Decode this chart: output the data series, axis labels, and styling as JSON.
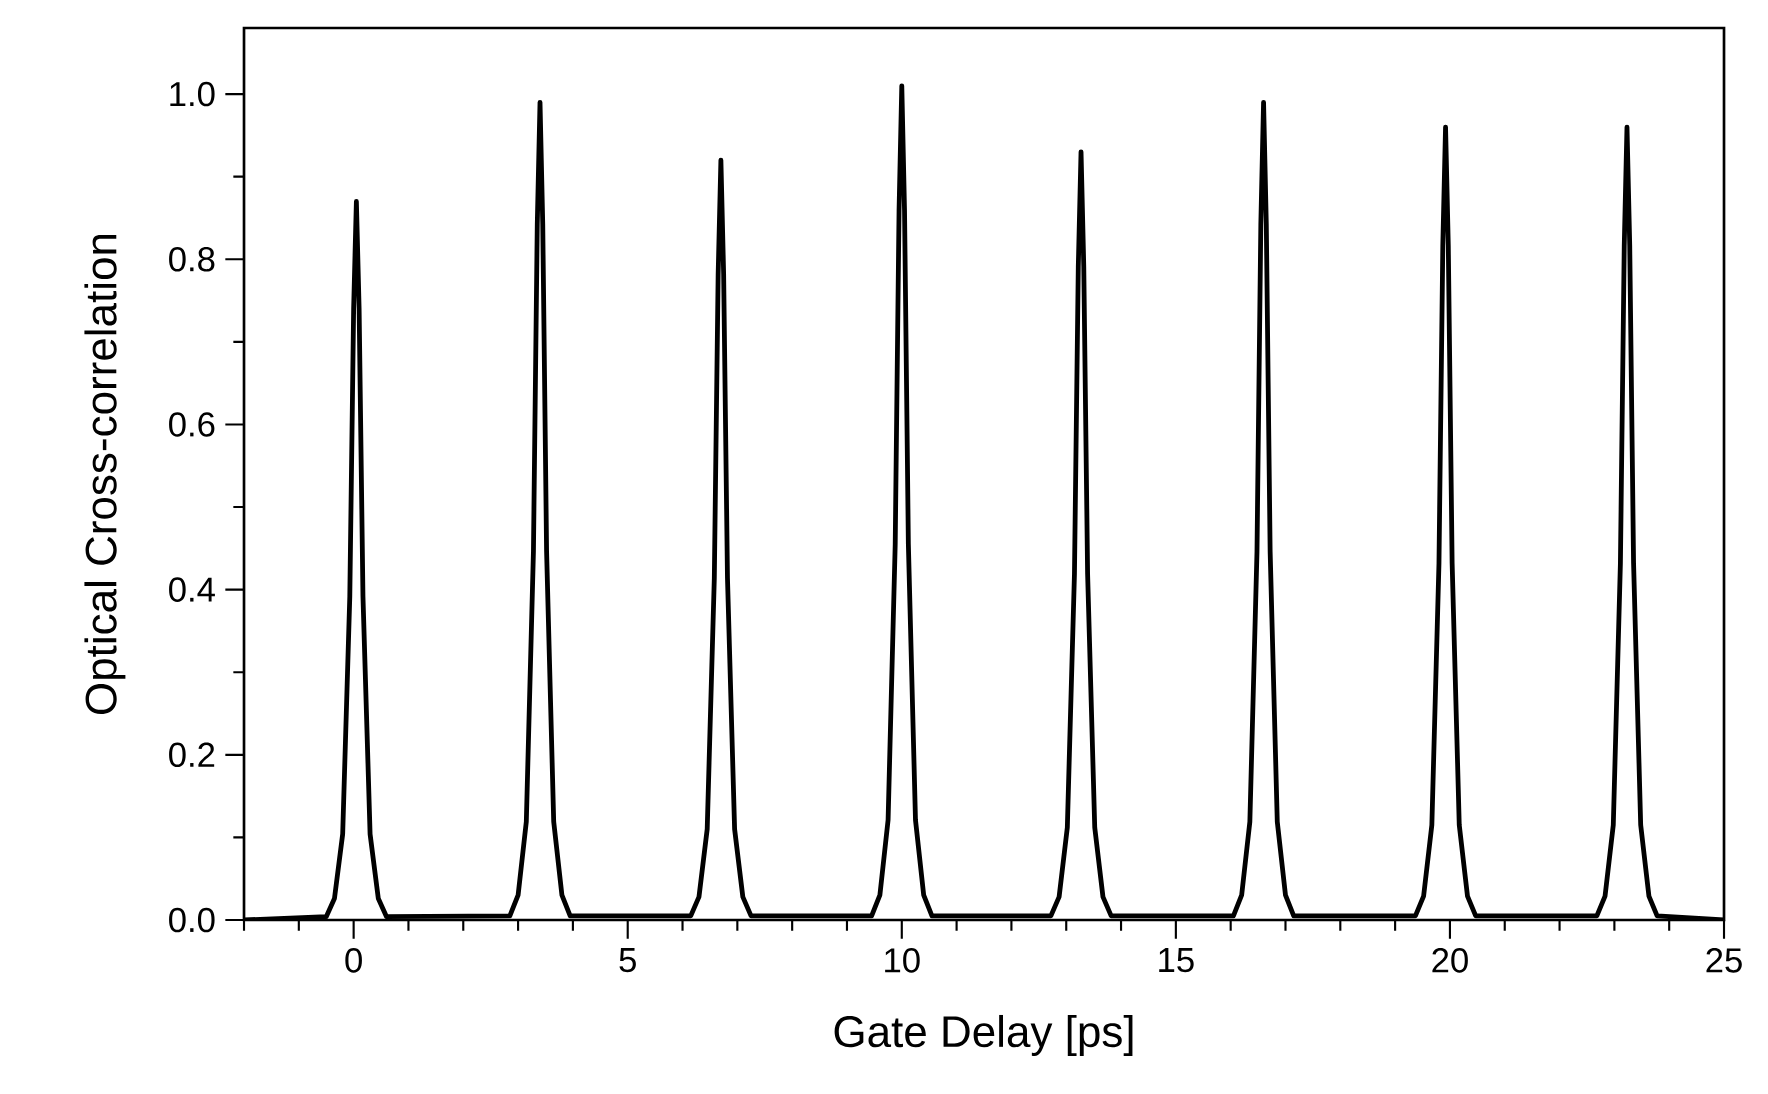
{
  "chart_data": {
    "type": "line",
    "xlabel": "Gate Delay [ps]",
    "ylabel": "Optical Cross-correlation",
    "color": "#000000",
    "x": [
      -2,
      -0.5,
      -0.35,
      -0.2,
      -0.07,
      0,
      0.05,
      0.1,
      0.17,
      0.3,
      0.45,
      0.6,
      2.85,
      3.0,
      3.15,
      3.28,
      3.35,
      3.4,
      3.45,
      3.52,
      3.65,
      3.8,
      3.95,
      6.15,
      6.3,
      6.45,
      6.58,
      6.65,
      6.7,
      6.75,
      6.82,
      6.95,
      7.1,
      7.25,
      9.45,
      9.6,
      9.75,
      9.88,
      9.95,
      10.0,
      10.05,
      10.12,
      10.25,
      10.4,
      10.55,
      12.72,
      12.87,
      13.02,
      13.15,
      13.22,
      13.27,
      13.32,
      13.39,
      13.52,
      13.67,
      13.82,
      16.05,
      16.2,
      16.35,
      16.48,
      16.55,
      16.6,
      16.65,
      16.72,
      16.85,
      17.0,
      17.15,
      19.37,
      19.52,
      19.67,
      19.8,
      19.87,
      19.92,
      19.97,
      20.04,
      20.17,
      20.32,
      20.47,
      22.68,
      22.83,
      22.98,
      23.11,
      23.18,
      23.23,
      23.28,
      23.35,
      23.48,
      23.63,
      23.78,
      25
    ],
    "values": [
      0.0,
      0.004,
      0.026,
      0.104,
      0.392,
      0.74,
      0.87,
      0.74,
      0.392,
      0.104,
      0.026,
      0.004,
      0.005,
      0.03,
      0.119,
      0.446,
      0.842,
      0.99,
      0.842,
      0.446,
      0.119,
      0.03,
      0.005,
      0.005,
      0.028,
      0.11,
      0.414,
      0.782,
      0.92,
      0.782,
      0.414,
      0.11,
      0.028,
      0.005,
      0.005,
      0.03,
      0.121,
      0.455,
      0.859,
      1.01,
      0.859,
      0.455,
      0.121,
      0.03,
      0.005,
      0.005,
      0.028,
      0.112,
      0.419,
      0.791,
      0.93,
      0.791,
      0.419,
      0.112,
      0.028,
      0.005,
      0.005,
      0.03,
      0.119,
      0.446,
      0.842,
      0.99,
      0.842,
      0.446,
      0.119,
      0.03,
      0.005,
      0.005,
      0.029,
      0.115,
      0.432,
      0.816,
      0.96,
      0.816,
      0.432,
      0.115,
      0.029,
      0.005,
      0.005,
      0.029,
      0.115,
      0.432,
      0.816,
      0.96,
      0.816,
      0.432,
      0.115,
      0.029,
      0.005,
      0.0
    ],
    "xlim": [
      -2,
      25
    ],
    "ylim": [
      0,
      1.08
    ],
    "xticks": [
      {
        "value": -2,
        "label": null
      },
      {
        "value": -1,
        "label": null
      },
      0,
      {
        "value": 1,
        "label": null
      },
      {
        "value": 2,
        "label": null
      },
      {
        "value": 3,
        "label": null
      },
      {
        "value": 4,
        "label": null
      },
      5,
      {
        "value": 6,
        "label": null
      },
      {
        "value": 7,
        "label": null
      },
      {
        "value": 8,
        "label": null
      },
      {
        "value": 9,
        "label": null
      },
      10,
      {
        "value": 11,
        "label": null
      },
      {
        "value": 12,
        "label": null
      },
      {
        "value": 13,
        "label": null
      },
      {
        "value": 14,
        "label": null
      },
      15,
      {
        "value": 16,
        "label": null
      },
      {
        "value": 17,
        "label": null
      },
      {
        "value": 18,
        "label": null
      },
      {
        "value": 19,
        "label": null
      },
      20,
      {
        "value": 21,
        "label": null
      },
      {
        "value": 22,
        "label": null
      },
      {
        "value": 23,
        "label": null
      },
      {
        "value": 24,
        "label": null
      },
      25
    ],
    "yticks": [
      {
        "value": 0,
        "label": "0.0"
      },
      {
        "value": 0.1,
        "label": null
      },
      {
        "value": 0.2,
        "label": "0.2"
      },
      {
        "value": 0.3,
        "label": null
      },
      {
        "value": 0.4,
        "label": "0.4"
      },
      {
        "value": 0.5,
        "label": null
      },
      {
        "value": 0.6,
        "label": "0.6"
      },
      {
        "value": 0.7,
        "label": null
      },
      {
        "value": 0.8,
        "label": "0.8"
      },
      {
        "value": 0.9,
        "label": null
      },
      {
        "value": 1.0,
        "label": "1.0"
      }
    ]
  }
}
